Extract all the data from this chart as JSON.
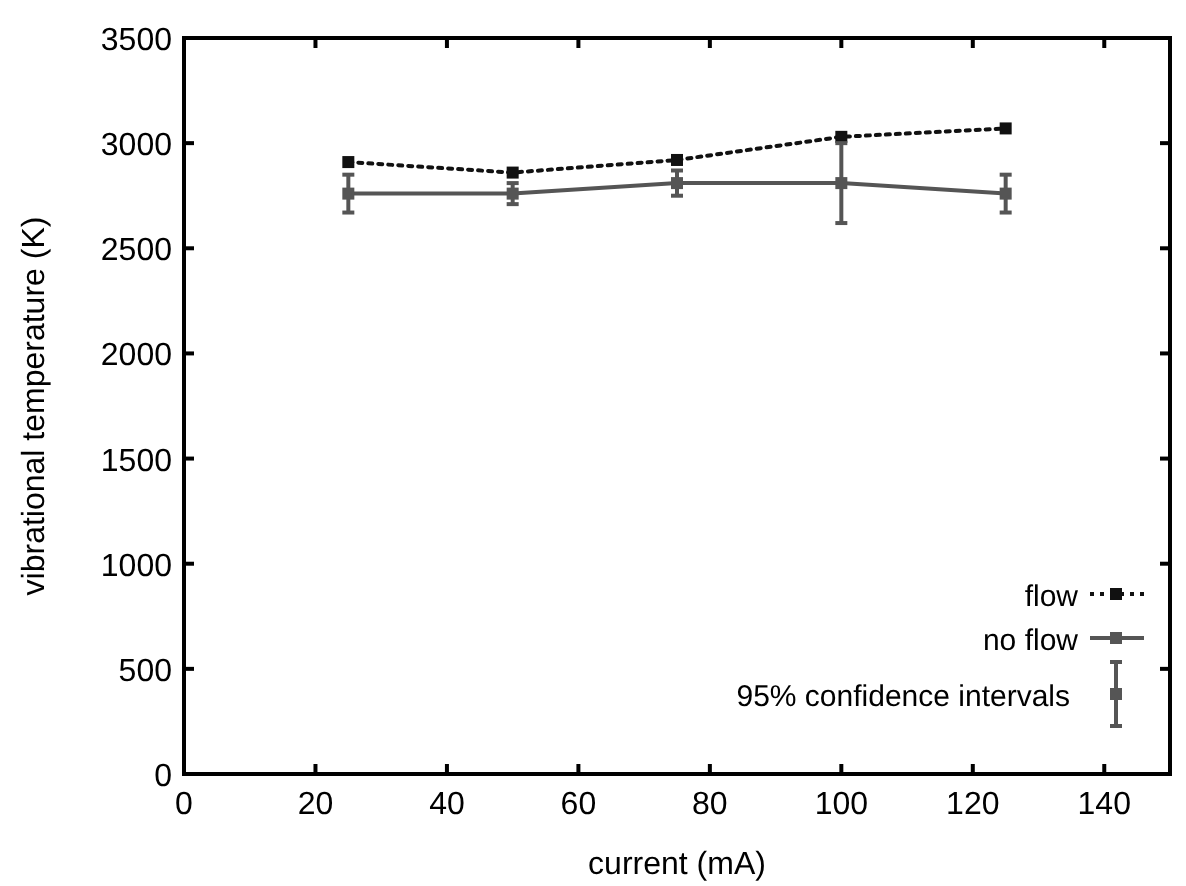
{
  "chart_data": {
    "type": "line",
    "xlabel": "current (mA)",
    "ylabel": "vibrational temperature (K)",
    "x": [
      25,
      50,
      75,
      100,
      125
    ],
    "series": [
      {
        "name": "flow",
        "color": "#111111",
        "line_style": "dotted",
        "values": [
          2910,
          2860,
          2920,
          3030,
          3070
        ]
      },
      {
        "name": "no flow",
        "color": "#555555",
        "line_style": "solid",
        "values": [
          2760,
          2760,
          2810,
          2810,
          2760
        ],
        "errors": [
          90,
          50,
          60,
          190,
          90
        ]
      }
    ],
    "xlim": [
      0,
      150
    ],
    "xticks": [
      0,
      20,
      40,
      60,
      80,
      100,
      120,
      140
    ],
    "ylim": [
      0,
      3500
    ],
    "yticks": [
      0,
      500,
      1000,
      1500,
      2000,
      2500,
      3000,
      3500
    ],
    "annotations": [
      "95% confidence intervals"
    ],
    "legend": "bottom right",
    "marker": "square",
    "grid": false
  }
}
